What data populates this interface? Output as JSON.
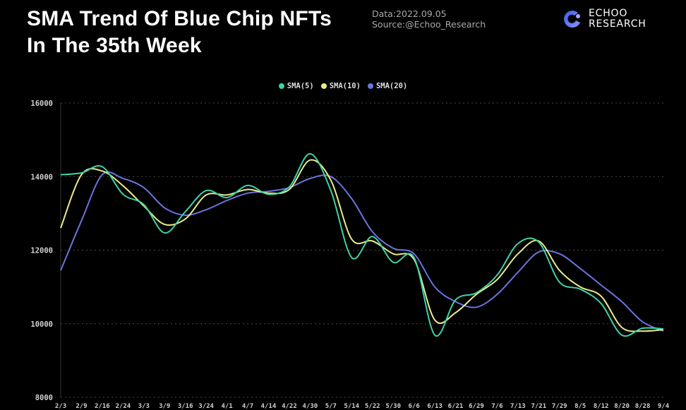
{
  "header": {
    "title_line1": "SMA Trend Of Blue Chip NFTs",
    "title_line2": "In The 35th Week",
    "data_date": "Data:2022.09.05",
    "source": "Source:@Echoo_Research",
    "logo_line1": "ECHOO",
    "logo_line2": "RESEARCH",
    "logo_color": "#5b6cf5"
  },
  "chart_data": {
    "type": "line",
    "title": "SMA Trend Of Blue Chip NFTs In The 35th Week",
    "xlabel": "",
    "ylabel": "",
    "ylim": [
      8000,
      16000
    ],
    "yticks": [
      "16000",
      "14000",
      "12000",
      "10000",
      "8000"
    ],
    "ytick_values": [
      16000,
      14000,
      12000,
      10000,
      8000
    ],
    "grid": true,
    "legend_position": "top-center",
    "categories": [
      "2/3",
      "2/9",
      "2/16",
      "2/24",
      "3/3",
      "3/9",
      "3/16",
      "3/24",
      "4/1",
      "4/7",
      "4/14",
      "4/22",
      "4/30",
      "5/7",
      "5/14",
      "5/22",
      "5/30",
      "6/6",
      "6/13",
      "6/21",
      "6/29",
      "7/6",
      "7/13",
      "7/21",
      "7/29",
      "8/5",
      "8/12",
      "8/20",
      "8/28",
      "9/4"
    ],
    "series": [
      {
        "name": "SMA(5)",
        "color": "#3ed3a8",
        "values": [
          14050,
          14100,
          14270,
          13520,
          13240,
          12470,
          13050,
          13620,
          13430,
          13760,
          13520,
          13720,
          14620,
          13620,
          11800,
          12370,
          11670,
          11800,
          9690,
          10650,
          10840,
          11320,
          12180,
          12220,
          11130,
          10940,
          10550,
          9690,
          9880,
          9860
        ]
      },
      {
        "name": "SMA(10)",
        "color": "#e9ec8b",
        "values": [
          12600,
          14050,
          14150,
          13750,
          13200,
          12700,
          12850,
          13500,
          13500,
          13650,
          13550,
          13650,
          14450,
          13900,
          12300,
          12250,
          11900,
          11750,
          10100,
          10300,
          10800,
          11200,
          11900,
          12250,
          11450,
          11000,
          10750,
          9900,
          9800,
          9840
        ]
      },
      {
        "name": "SMA(20)",
        "color": "#6b74de",
        "values": [
          11450,
          12800,
          14050,
          13950,
          13700,
          13150,
          12950,
          13100,
          13350,
          13550,
          13600,
          13700,
          13950,
          14000,
          13400,
          12500,
          12050,
          11900,
          11000,
          10600,
          10450,
          10800,
          11400,
          11950,
          11900,
          11500,
          11050,
          10600,
          10050,
          9800
        ]
      }
    ]
  }
}
